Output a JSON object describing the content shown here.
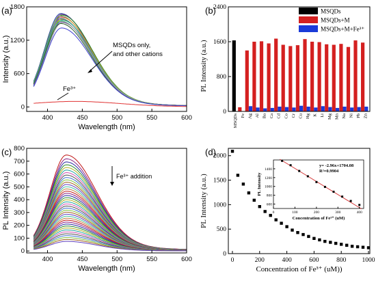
{
  "chart_data": [
    {
      "panel": "(a)",
      "type": "line",
      "xlabel": "Wavelength (nm)",
      "ylabel": "Intensity (a.u.)",
      "xlim": [
        370,
        600
      ],
      "ylim": [
        -80,
        1800
      ],
      "xticks": [
        400,
        450,
        500,
        550,
        600
      ],
      "yticks": [
        0,
        600,
        1200,
        1800
      ],
      "annotations": [
        "MSQDs only,",
        "and other cations",
        "Fe³⁺"
      ],
      "peak_x": 420,
      "series": [
        {
          "color": "#1f3fa0",
          "peak": 1680
        },
        {
          "color": "#6a2a88",
          "peak": 1665
        },
        {
          "color": "#2a8a2a",
          "peak": 1650
        },
        {
          "color": "#7ab540",
          "peak": 1635
        },
        {
          "color": "#c040a0",
          "peak": 1620
        },
        {
          "color": "#d4a020",
          "peak": 1605
        },
        {
          "color": "#3a6ad0",
          "peak": 1590
        },
        {
          "color": "#909020",
          "peak": 1575
        },
        {
          "color": "#20a0a0",
          "peak": 1560
        },
        {
          "color": "#50c050",
          "peak": 1545
        },
        {
          "color": "#8050c0",
          "peak": 1530
        },
        {
          "color": "#a0a0a0",
          "peak": 1515
        },
        {
          "color": "#306030",
          "peak": 1500
        },
        {
          "color": "#4040d0",
          "peak": 1420
        },
        {
          "color": "#e03030",
          "peak": 95
        }
      ]
    },
    {
      "panel": "(b)",
      "type": "bar",
      "ylabel": "PL Intensity (a.u.)",
      "ylim": [
        0,
        2400
      ],
      "yticks": [
        0,
        800,
        1600,
        2400
      ],
      "categories": [
        "MSQDs",
        "Fe",
        "Ag",
        "Al",
        "Ba",
        "Ca",
        "Cd",
        "Co",
        "Cr",
        "Cu",
        "Hg",
        "K",
        "Li",
        "Mg",
        "Mn",
        "Na",
        "Ni",
        "Pb",
        "Zn"
      ],
      "series": [
        {
          "name": "MSQDs",
          "color": "#000000",
          "values": [
            1630,
            0,
            0,
            0,
            0,
            0,
            0,
            0,
            0,
            0,
            0,
            0,
            0,
            0,
            0,
            0,
            0,
            0,
            0
          ]
        },
        {
          "name": "MSQDs+M",
          "color": "#d42020",
          "values": [
            0,
            95,
            1400,
            1600,
            1610,
            1560,
            1670,
            1530,
            1500,
            1520,
            1660,
            1600,
            1590,
            1540,
            1530,
            1550,
            1480,
            1630,
            1580
          ]
        },
        {
          "name": "MSQDs+M+Fe³⁺",
          "color": "#1a3ad8",
          "values": [
            0,
            0,
            120,
            90,
            70,
            80,
            110,
            100,
            90,
            130,
            110,
            90,
            120,
            100,
            80,
            110,
            90,
            100,
            110
          ]
        }
      ],
      "legend": "top-right"
    },
    {
      "panel": "(c)",
      "type": "line",
      "xlabel": "Wavelength (nm)",
      "ylabel": "PL Intensity (a.u.)",
      "xlim": [
        370,
        600
      ],
      "ylim": [
        -15,
        800
      ],
      "xticks": [
        400,
        450,
        500,
        550,
        600
      ],
      "yticks": [
        0,
        100,
        200,
        300,
        400,
        500,
        600,
        700,
        800
      ],
      "annotations": [
        "Fe³⁺ addition"
      ],
      "peak_x": 427,
      "peak_max": 748,
      "peak_min": 75,
      "curve_count": 40
    },
    {
      "panel": "(d)",
      "type": "scatter",
      "xlabel": "Concentration of Fe³⁺ (uM))",
      "ylabel": "PL Intensity (a.u.)",
      "xlim": [
        -30,
        1010
      ],
      "ylim": [
        0,
        2150
      ],
      "xticks": [
        0,
        200,
        400,
        600,
        800,
        1000
      ],
      "yticks": [
        0,
        500,
        1000,
        1500,
        2000
      ],
      "x": [
        0,
        40,
        80,
        120,
        160,
        200,
        240,
        280,
        320,
        360,
        400,
        440,
        480,
        520,
        560,
        600,
        640,
        680,
        720,
        760,
        800,
        840,
        880,
        920,
        960,
        1000
      ],
      "y": [
        2090,
        1600,
        1420,
        1240,
        1090,
        960,
        860,
        780,
        690,
        620,
        550,
        480,
        430,
        390,
        350,
        310,
        280,
        250,
        230,
        210,
        190,
        170,
        150,
        140,
        130,
        120
      ],
      "inset": {
        "type": "scatter",
        "xlabel": "Concentration of Fe³⁺ (uM)",
        "ylabel": "PL Intensity",
        "xlim": [
          0,
          420
        ],
        "ylim": [
          500,
          1600
        ],
        "xticks": [
          0,
          100,
          200,
          300,
          400
        ],
        "yticks": [
          600,
          800,
          1000,
          1200,
          1400
        ],
        "x": [
          40,
          80,
          120,
          160,
          200,
          240,
          280,
          320,
          360,
          400
        ],
        "y": [
          1580,
          1480,
          1350,
          1230,
          1100,
          990,
          880,
          770,
          670,
          580
        ],
        "fit_slope": -2.96,
        "fit_intercept": 1704.08,
        "equation": "y= -2.96x+1704.08",
        "r2": "R²=0.9904"
      }
    }
  ]
}
